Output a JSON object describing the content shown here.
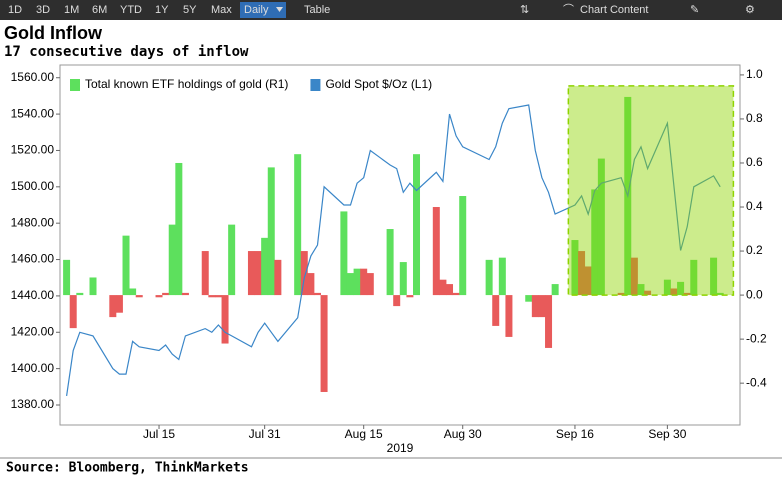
{
  "toolbar": {
    "ranges": [
      "1D",
      "3D",
      "1M",
      "6M",
      "YTD",
      "1Y",
      "5Y",
      "Max"
    ],
    "period": "Daily",
    "view": "Table",
    "chart_content": "Chart Content"
  },
  "source": "Source: Bloomberg, ThinkMarkets",
  "chart_data": {
    "type": "bar-line",
    "title": "Gold Inflow",
    "subtitle": "17 consecutive days of inflow",
    "xlabel": "2019",
    "x": [
      "2019-07-01",
      "2019-07-02",
      "2019-07-03",
      "2019-07-05",
      "2019-07-08",
      "2019-07-09",
      "2019-07-10",
      "2019-07-11",
      "2019-07-12",
      "2019-07-15",
      "2019-07-16",
      "2019-07-17",
      "2019-07-18",
      "2019-07-19",
      "2019-07-22",
      "2019-07-23",
      "2019-07-24",
      "2019-07-25",
      "2019-07-26",
      "2019-07-29",
      "2019-07-30",
      "2019-07-31",
      "2019-08-01",
      "2019-08-02",
      "2019-08-05",
      "2019-08-06",
      "2019-08-07",
      "2019-08-08",
      "2019-08-09",
      "2019-08-12",
      "2019-08-13",
      "2019-08-14",
      "2019-08-15",
      "2019-08-16",
      "2019-08-19",
      "2019-08-20",
      "2019-08-21",
      "2019-08-22",
      "2019-08-23",
      "2019-08-26",
      "2019-08-27",
      "2019-08-28",
      "2019-08-29",
      "2019-08-30",
      "2019-09-03",
      "2019-09-04",
      "2019-09-05",
      "2019-09-06",
      "2019-09-09",
      "2019-09-10",
      "2019-09-11",
      "2019-09-12",
      "2019-09-13",
      "2019-09-16",
      "2019-09-17",
      "2019-09-18",
      "2019-09-19",
      "2019-09-20",
      "2019-09-23",
      "2019-09-24",
      "2019-09-25",
      "2019-09-26",
      "2019-09-27",
      "2019-09-30",
      "2019-10-01",
      "2019-10-02",
      "2019-10-03",
      "2019-10-04",
      "2019-10-07",
      "2019-10-08"
    ],
    "series": [
      {
        "name": "Total known ETF holdings of gold (R1)",
        "color": "#5de05d",
        "axis": "y2",
        "values": [
          0.16,
          -0.15,
          0.01,
          0.08,
          -0.1,
          -0.08,
          0.27,
          0.03,
          -0.01,
          -0.01,
          0.01,
          0.32,
          0.6,
          0.01,
          0.2,
          -0.01,
          -0.01,
          -0.22,
          0.32,
          0.2,
          0.2,
          0.26,
          0.58,
          0.16,
          0.64,
          0.2,
          0.1,
          0.01,
          -0.44,
          0.38,
          0.1,
          0.12,
          0.12,
          0.1,
          0.3,
          -0.05,
          0.15,
          -0.01,
          0.64,
          0.4,
          0.07,
          0.05,
          0.01,
          0.45,
          0.16,
          -0.14,
          0.17,
          -0.19,
          -0.03,
          -0.1,
          -0.1,
          -0.24,
          0.05,
          0.25,
          0.2,
          0.13,
          0.48,
          0.62,
          0.01,
          0.9,
          0.17,
          0.05,
          0.02,
          0.07,
          0.03,
          0.06,
          0.01,
          0.16,
          0.17,
          0.01
        ],
        "colors": [
          "#5de05d",
          "#e85a5a",
          "#5de05d",
          "#5de05d",
          "#e85a5a",
          "#e85a5a",
          "#5de05d",
          "#5de05d",
          "#e85a5a",
          "#e85a5a",
          "#e85a5a",
          "#5de05d",
          "#5de05d",
          "#e85a5a",
          "#e85a5a",
          "#e85a5a",
          "#e85a5a",
          "#e85a5a",
          "#5de05d",
          "#e85a5a",
          "#e85a5a",
          "#5de05d",
          "#5de05d",
          "#e85a5a",
          "#5de05d",
          "#e85a5a",
          "#e85a5a",
          "#e85a5a",
          "#e85a5a",
          "#5de05d",
          "#5de05d",
          "#5de05d",
          "#e85a5a",
          "#e85a5a",
          "#5de05d",
          "#e85a5a",
          "#5de05d",
          "#e85a5a",
          "#5de05d",
          "#e85a5a",
          "#e85a5a",
          "#e85a5a",
          "#e85a5a",
          "#5de05d",
          "#5de05d",
          "#e85a5a",
          "#5de05d",
          "#e85a5a",
          "#5de05d",
          "#e85a5a",
          "#e85a5a",
          "#e85a5a",
          "#5de05d",
          "#5de05d",
          "#e85a5a",
          "#e85a5a",
          "#5de05d",
          "#5de05d",
          "#e85a5a",
          "#5de05d",
          "#e85a5a",
          "#5de05d",
          "#e85a5a",
          "#5de05d",
          "#e85a5a",
          "#5de05d",
          "#e85a5a",
          "#5de05d",
          "#5de05d",
          "#5de05d"
        ]
      },
      {
        "name": "Gold Spot $/Oz  (L1)",
        "color": "#3a86c8",
        "axis": "y",
        "values": [
          1385,
          1410,
          1420,
          1418,
          1400,
          1397,
          1397,
          1415,
          1412,
          1410,
          1413,
          1408,
          1405,
          1418,
          1422,
          1420,
          1424,
          1420,
          1418,
          1412,
          1420,
          1425,
          1420,
          1415,
          1428,
          1450,
          1462,
          1468,
          1500,
          1490,
          1490,
          1502,
          1505,
          1520,
          1512,
          1510,
          1497,
          1502,
          1498,
          1508,
          1503,
          1540,
          1528,
          1522,
          1515,
          1522,
          1535,
          1543,
          1545,
          1520,
          1505,
          1497,
          1485,
          1490,
          1495,
          1485,
          1498,
          1502,
          1505,
          1495,
          1515,
          1522,
          1510,
          1535,
          1500,
          1465,
          1478,
          1500,
          1506,
          1500
        ]
      }
    ],
    "xlim": [
      "2019-06-30",
      "2019-10-11"
    ],
    "xticks": [
      {
        "value": "2019-07-15",
        "label": "Jul 15"
      },
      {
        "value": "2019-07-31",
        "label": "Jul 31"
      },
      {
        "value": "2019-08-15",
        "label": "Aug 15"
      },
      {
        "value": "2019-08-30",
        "label": "Aug 30"
      },
      {
        "value": "2019-09-16",
        "label": "Sep 16"
      },
      {
        "value": "2019-09-30",
        "label": "Sep 30"
      }
    ],
    "ylim": [
      1369,
      1567
    ],
    "yticks": [
      {
        "value": 1380,
        "label": "1380.00"
      },
      {
        "value": 1400,
        "label": "1400.00"
      },
      {
        "value": 1420,
        "label": "1420.00"
      },
      {
        "value": 1440,
        "label": "1440.00"
      },
      {
        "value": 1460,
        "label": "1460.00"
      },
      {
        "value": 1480,
        "label": "1480.00"
      },
      {
        "value": 1500,
        "label": "1500.00"
      },
      {
        "value": 1520,
        "label": "1520.00"
      },
      {
        "value": 1540,
        "label": "1540.00"
      },
      {
        "value": 1560,
        "label": "1560.00"
      }
    ],
    "y2lim": [
      -0.59,
      1.045
    ],
    "y2ticks": [
      -0.4,
      -0.2,
      {
        "value": 0,
        "label": "0.0"
      },
      0.2,
      0.4,
      0.6,
      0.8,
      {
        "value": 1,
        "label": "1.0"
      }
    ],
    "highlight": {
      "x": [
        "2019-09-15",
        "2019-10-10"
      ],
      "y2": [
        0,
        0.95
      ],
      "color": "#8fd400"
    },
    "legend": "upper left",
    "grid": false
  }
}
